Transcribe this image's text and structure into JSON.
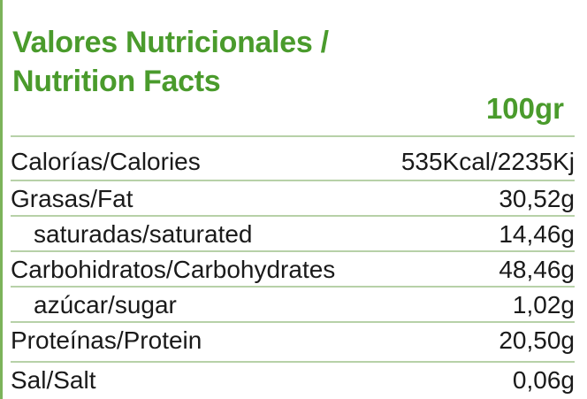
{
  "title_line1": "Valores Nutricionales /",
  "title_line2": "Nutrition Facts",
  "per_amount": "100gr",
  "rows": [
    {
      "label": "Calorías/Calories",
      "value": "535Kcal/2235Kj"
    },
    {
      "label": "Grasas/Fat",
      "value": "30,52g"
    },
    {
      "label": "saturadas/saturated",
      "value": "14,46g"
    },
    {
      "label": "Carbohidratos/Carbohydrates",
      "value": "48,46g"
    },
    {
      "label": "azúcar/sugar",
      "value": "1,02g"
    },
    {
      "label": "Proteínas/Protein",
      "value": "20,50g"
    },
    {
      "label": "Sal/Salt",
      "value": "0,06g"
    }
  ],
  "colors": {
    "accent": "#4a9b2c",
    "divider": "#b7d1a8"
  }
}
